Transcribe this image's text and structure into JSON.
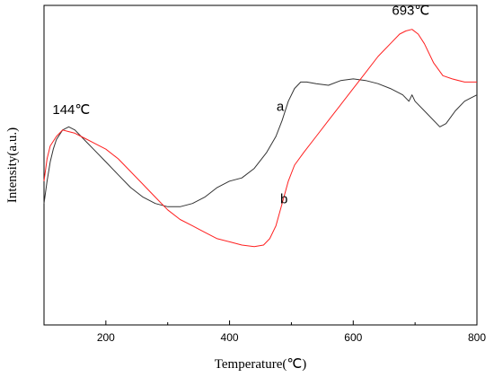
{
  "chart_data": {
    "type": "line",
    "xlabel": "Temperature(℃)",
    "ylabel": "Intensity(a.u.)",
    "xlim": [
      100,
      800
    ],
    "ylim": [
      0,
      100
    ],
    "x_ticks": [
      200,
      400,
      600,
      800
    ],
    "y_ticks_shown": false,
    "grid": false,
    "legend": "none",
    "series": [
      {
        "name": "a",
        "color": "#333333",
        "points": [
          [
            100,
            38
          ],
          [
            105,
            45
          ],
          [
            110,
            51
          ],
          [
            115,
            55
          ],
          [
            120,
            58
          ],
          [
            130,
            61
          ],
          [
            140,
            62
          ],
          [
            150,
            61
          ],
          [
            160,
            59
          ],
          [
            170,
            57
          ],
          [
            180,
            55
          ],
          [
            200,
            51
          ],
          [
            220,
            47
          ],
          [
            240,
            43
          ],
          [
            260,
            40
          ],
          [
            280,
            38
          ],
          [
            300,
            37
          ],
          [
            320,
            37
          ],
          [
            340,
            38
          ],
          [
            360,
            40
          ],
          [
            380,
            43
          ],
          [
            400,
            45
          ],
          [
            420,
            46
          ],
          [
            440,
            49
          ],
          [
            460,
            54
          ],
          [
            475,
            59
          ],
          [
            485,
            64
          ],
          [
            495,
            70
          ],
          [
            505,
            74
          ],
          [
            515,
            76
          ],
          [
            525,
            76
          ],
          [
            540,
            75.5
          ],
          [
            560,
            75
          ],
          [
            580,
            76.5
          ],
          [
            600,
            77
          ],
          [
            620,
            76.5
          ],
          [
            640,
            75.5
          ],
          [
            660,
            74
          ],
          [
            680,
            72
          ],
          [
            690,
            70
          ],
          [
            695,
            72
          ],
          [
            700,
            70
          ],
          [
            720,
            66
          ],
          [
            740,
            62
          ],
          [
            750,
            63
          ],
          [
            765,
            67
          ],
          [
            780,
            70
          ],
          [
            790,
            71
          ],
          [
            800,
            72
          ]
        ]
      },
      {
        "name": "b",
        "color": "#ff2020",
        "points": [
          [
            100,
            45
          ],
          [
            105,
            52
          ],
          [
            110,
            56
          ],
          [
            120,
            59
          ],
          [
            130,
            61
          ],
          [
            140,
            60.5
          ],
          [
            150,
            60
          ],
          [
            160,
            59
          ],
          [
            170,
            58
          ],
          [
            180,
            57
          ],
          [
            200,
            55
          ],
          [
            220,
            52
          ],
          [
            240,
            48
          ],
          [
            260,
            44
          ],
          [
            280,
            40
          ],
          [
            300,
            36
          ],
          [
            320,
            33
          ],
          [
            340,
            31
          ],
          [
            360,
            29
          ],
          [
            380,
            27
          ],
          [
            400,
            26
          ],
          [
            420,
            25
          ],
          [
            440,
            24.5
          ],
          [
            455,
            25
          ],
          [
            465,
            27
          ],
          [
            475,
            31
          ],
          [
            485,
            38
          ],
          [
            495,
            45
          ],
          [
            505,
            50
          ],
          [
            520,
            54
          ],
          [
            540,
            59
          ],
          [
            560,
            64
          ],
          [
            580,
            69
          ],
          [
            600,
            74
          ],
          [
            620,
            79
          ],
          [
            640,
            84
          ],
          [
            660,
            88
          ],
          [
            675,
            91
          ],
          [
            685,
            92
          ],
          [
            695,
            92.5
          ],
          [
            705,
            91
          ],
          [
            715,
            88
          ],
          [
            730,
            82
          ],
          [
            745,
            78
          ],
          [
            760,
            77
          ],
          [
            780,
            76
          ],
          [
            800,
            76
          ]
        ]
      }
    ],
    "annotations": [
      {
        "text": "144℃",
        "x": 144,
        "y": 66
      },
      {
        "text": "693℃",
        "x": 693,
        "y": 97
      },
      {
        "text": "a",
        "x": 482,
        "y": 67
      },
      {
        "text": "b",
        "x": 488,
        "y": 38
      }
    ]
  }
}
